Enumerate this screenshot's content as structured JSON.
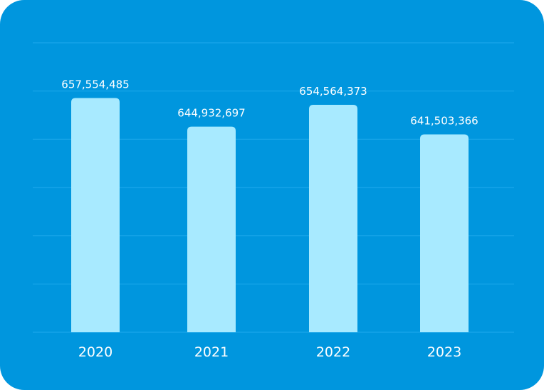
{
  "chart_data": {
    "type": "bar",
    "title": "",
    "xlabel": "",
    "ylabel": "",
    "categories": [
      "2020",
      "2021",
      "2022",
      "2023"
    ],
    "values": [
      657554485,
      644932697,
      654564373,
      641503366
    ],
    "data_labels": [
      "657,554,485",
      "644,932,697",
      "654,564,373",
      "641,503,366"
    ],
    "ylim": [
      554000000,
      682000000
    ],
    "grid": true,
    "colors": {
      "background": "#0096de",
      "bar": "#a8eaff",
      "grid": "#1aa6ea",
      "text": "#ffffff"
    }
  }
}
